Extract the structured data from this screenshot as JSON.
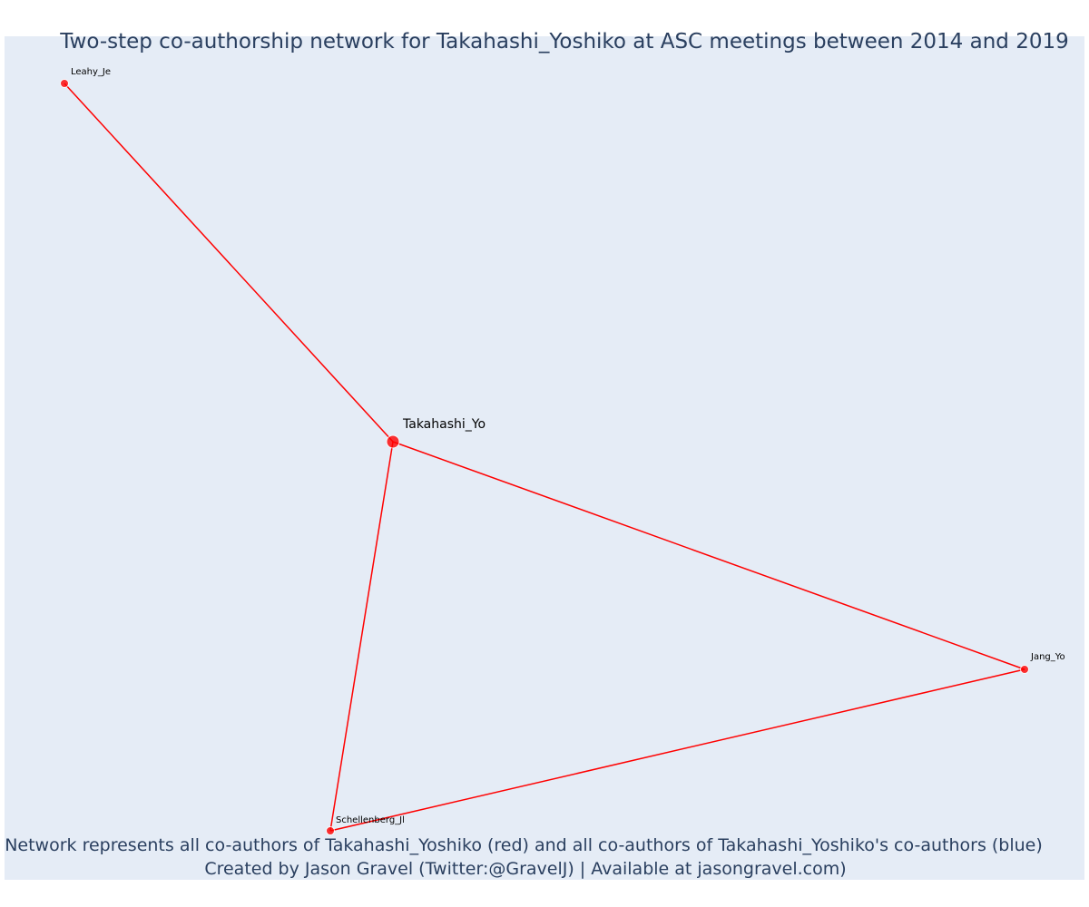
{
  "title": "Two-step co-authorship network for Takahashi_Yoshiko at ASC meetings between 2014 and 2019",
  "caption_line1": "Network represents all co-authors of Takahashi_Yoshiko (red) and all co-authors of Takahashi_Yoshiko's co-authors (blue)",
  "caption_line2": "Created by Jason Gravel (Twitter:@GravelJ) | Available at jasongravel.com)",
  "colors": {
    "background": "#e5ecf6",
    "edge": "#ff0000",
    "node": "#ff0000",
    "text": "#2a3f5f"
  },
  "nodes": [
    {
      "id": "takahashi",
      "label": "Takahashi_Yo",
      "color": "red",
      "role": "ego"
    },
    {
      "id": "leahy",
      "label": "Leahy_Je",
      "color": "red",
      "role": "co-author"
    },
    {
      "id": "jang",
      "label": "Jang_Yo",
      "color": "red",
      "role": "co-author"
    },
    {
      "id": "schellenberg",
      "label": "Schellenberg_Jl",
      "color": "red",
      "role": "co-author"
    }
  ],
  "edges": [
    {
      "source": "takahashi",
      "target": "leahy"
    },
    {
      "source": "takahashi",
      "target": "jang"
    },
    {
      "source": "takahashi",
      "target": "schellenberg"
    },
    {
      "source": "schellenberg",
      "target": "jang"
    }
  ]
}
